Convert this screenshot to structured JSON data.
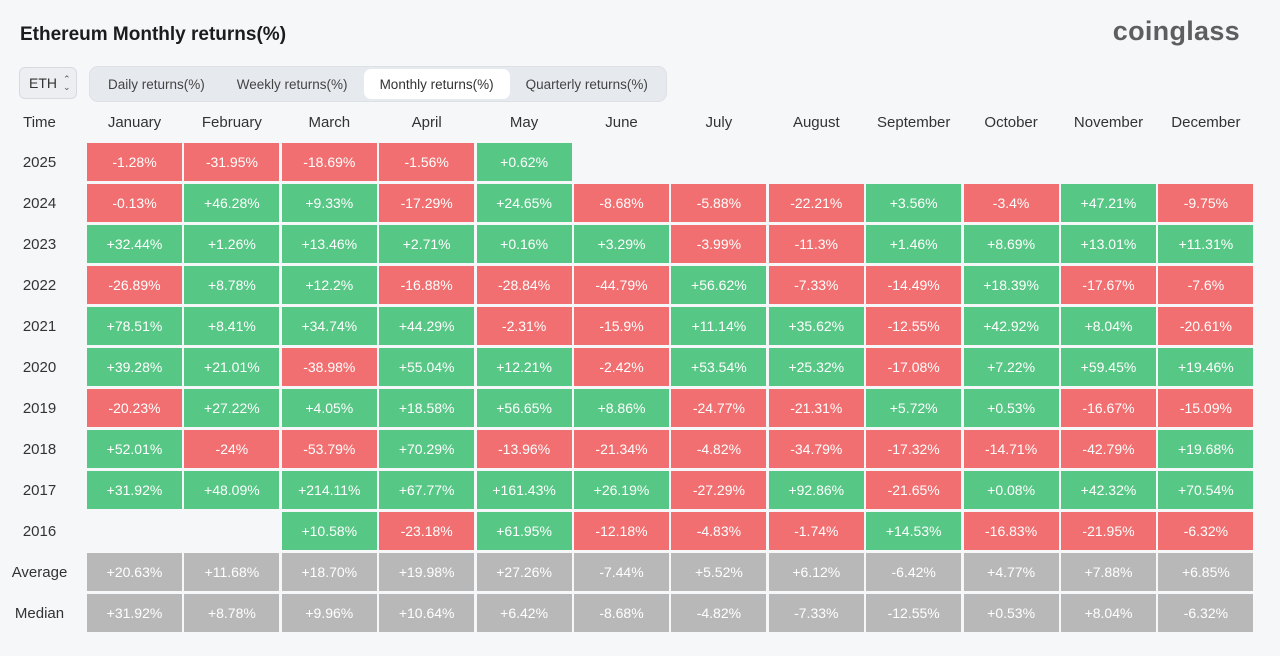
{
  "header": {
    "title": "Ethereum Monthly returns(%)",
    "logo": "coinglass"
  },
  "asset_select": {
    "value": "ETH"
  },
  "tabs": [
    {
      "label": "Daily returns(%)",
      "active": false
    },
    {
      "label": "Weekly returns(%)",
      "active": false
    },
    {
      "label": "Monthly returns(%)",
      "active": true
    },
    {
      "label": "Quarterly returns(%)",
      "active": false
    }
  ],
  "colors": {
    "positive": "#57c785",
    "negative": "#f16f70",
    "summary": "#b8b8b8"
  },
  "chart_data": {
    "type": "table",
    "title": "Ethereum Monthly returns(%)",
    "corner_label": "Time",
    "columns": [
      "January",
      "February",
      "March",
      "April",
      "May",
      "June",
      "July",
      "August",
      "September",
      "October",
      "November",
      "December"
    ],
    "rows": [
      {
        "label": "2025",
        "values": [
          "-1.28%",
          "-31.95%",
          "-18.69%",
          "-1.56%",
          "+0.62%",
          null,
          null,
          null,
          null,
          null,
          null,
          null
        ]
      },
      {
        "label": "2024",
        "values": [
          "-0.13%",
          "+46.28%",
          "+9.33%",
          "-17.29%",
          "+24.65%",
          "-8.68%",
          "-5.88%",
          "-22.21%",
          "+3.56%",
          "-3.4%",
          "+47.21%",
          "-9.75%"
        ]
      },
      {
        "label": "2023",
        "values": [
          "+32.44%",
          "+1.26%",
          "+13.46%",
          "+2.71%",
          "+0.16%",
          "+3.29%",
          "-3.99%",
          "-11.3%",
          "+1.46%",
          "+8.69%",
          "+13.01%",
          "+11.31%"
        ]
      },
      {
        "label": "2022",
        "values": [
          "-26.89%",
          "+8.78%",
          "+12.2%",
          "-16.88%",
          "-28.84%",
          "-44.79%",
          "+56.62%",
          "-7.33%",
          "-14.49%",
          "+18.39%",
          "-17.67%",
          "-7.6%"
        ]
      },
      {
        "label": "2021",
        "values": [
          "+78.51%",
          "+8.41%",
          "+34.74%",
          "+44.29%",
          "-2.31%",
          "-15.9%",
          "+11.14%",
          "+35.62%",
          "-12.55%",
          "+42.92%",
          "+8.04%",
          "-20.61%"
        ]
      },
      {
        "label": "2020",
        "values": [
          "+39.28%",
          "+21.01%",
          "-38.98%",
          "+55.04%",
          "+12.21%",
          "-2.42%",
          "+53.54%",
          "+25.32%",
          "-17.08%",
          "+7.22%",
          "+59.45%",
          "+19.46%"
        ]
      },
      {
        "label": "2019",
        "values": [
          "-20.23%",
          "+27.22%",
          "+4.05%",
          "+18.58%",
          "+56.65%",
          "+8.86%",
          "-24.77%",
          "-21.31%",
          "+5.72%",
          "+0.53%",
          "-16.67%",
          "-15.09%"
        ]
      },
      {
        "label": "2018",
        "values": [
          "+52.01%",
          "-24%",
          "-53.79%",
          "+70.29%",
          "-13.96%",
          "-21.34%",
          "-4.82%",
          "-34.79%",
          "-17.32%",
          "-14.71%",
          "-42.79%",
          "+19.68%"
        ]
      },
      {
        "label": "2017",
        "values": [
          "+31.92%",
          "+48.09%",
          "+214.11%",
          "+67.77%",
          "+161.43%",
          "+26.19%",
          "-27.29%",
          "+92.86%",
          "-21.65%",
          "+0.08%",
          "+42.32%",
          "+70.54%"
        ]
      },
      {
        "label": "2016",
        "values": [
          null,
          null,
          "+10.58%",
          "-23.18%",
          "+61.95%",
          "-12.18%",
          "-4.83%",
          "-1.74%",
          "+14.53%",
          "-16.83%",
          "-21.95%",
          "-6.32%"
        ]
      }
    ],
    "summary_rows": [
      {
        "label": "Average",
        "values": [
          "+20.63%",
          "+11.68%",
          "+18.70%",
          "+19.98%",
          "+27.26%",
          "-7.44%",
          "+5.52%",
          "+6.12%",
          "-6.42%",
          "+4.77%",
          "+7.88%",
          "+6.85%"
        ]
      },
      {
        "label": "Median",
        "values": [
          "+31.92%",
          "+8.78%",
          "+9.96%",
          "+10.64%",
          "+6.42%",
          "-8.68%",
          "-4.82%",
          "-7.33%",
          "-12.55%",
          "+0.53%",
          "+8.04%",
          "-6.32%"
        ]
      }
    ]
  }
}
